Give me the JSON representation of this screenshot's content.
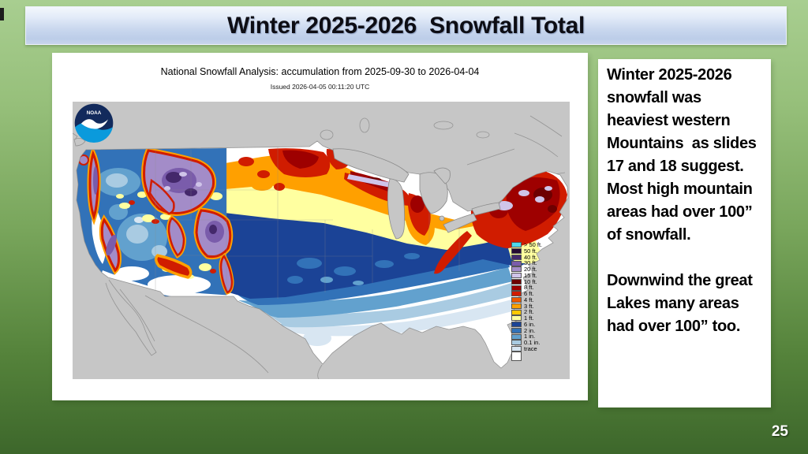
{
  "slide": {
    "title": "Winter 2025-2026  Snowfall Total",
    "page_number": "25",
    "background_colors": {
      "top": "#A8CE90",
      "bottom": "#3D672B"
    },
    "title_bar_colors": {
      "top": "#F3F7FC",
      "bottom": "#BCCDE8"
    }
  },
  "map_panel": {
    "title": "National Snowfall Analysis: accumulation from 2025-09-30 to 2026-04-04",
    "issued": "Issued 2026-04-05 00:11:20 UTC",
    "noaa_logo_text": "NOAA",
    "map_background_color": "#C6C6C6",
    "legend": {
      "items": [
        {
          "label": "> 50 ft.",
          "color": "#4DD9EC"
        },
        {
          "label": "50 ft.",
          "color": "#260A33"
        },
        {
          "label": "40 ft.",
          "color": "#44286B"
        },
        {
          "label": "30 ft.",
          "color": "#7A5CAB"
        },
        {
          "label": "20 ft.",
          "color": "#A38CC8"
        },
        {
          "label": "15 ft.",
          "color": "#CFC4E9"
        },
        {
          "label": "10 ft.",
          "color": "#6E0000"
        },
        {
          "label": "8 ft.",
          "color": "#9E0000"
        },
        {
          "label": "6 ft.",
          "color": "#D01C00"
        },
        {
          "label": "4 ft.",
          "color": "#EF5800"
        },
        {
          "label": "3 ft.",
          "color": "#FFA000"
        },
        {
          "label": "2 ft.",
          "color": "#FFC800"
        },
        {
          "label": "1 ft.",
          "color": "#FFFFA0"
        },
        {
          "label": "6 in.",
          "color": "#1B4396"
        },
        {
          "label": "2 in.",
          "color": "#3272B8"
        },
        {
          "label": "1 in.",
          "color": "#62A1CE"
        },
        {
          "label": "0.1 in.",
          "color": "#A9CBE2"
        },
        {
          "label": "trace",
          "color": "#D8E6F2"
        },
        {
          "label": "",
          "color": "#FFFFFF"
        }
      ]
    }
  },
  "commentary": {
    "paragraph1": "Winter 2025-2026 snowfall was heaviest western Mountains  as slides 17 and 18 suggest.  Most high mountain areas had over 100” of snowfall.",
    "paragraph2": "Downwind the great Lakes many areas had over 100” too."
  }
}
